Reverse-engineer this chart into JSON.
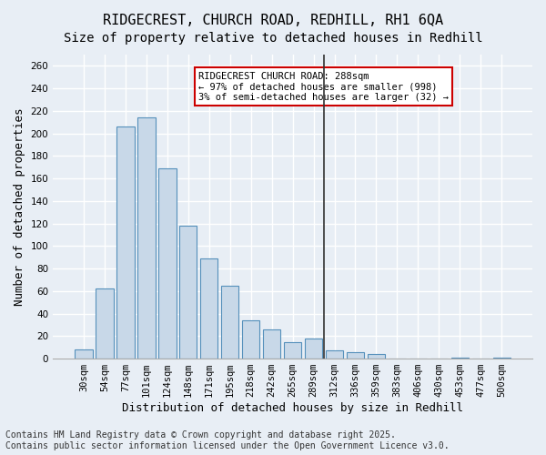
{
  "title1": "RIDGECREST, CHURCH ROAD, REDHILL, RH1 6QA",
  "title2": "Size of property relative to detached houses in Redhill",
  "xlabel": "Distribution of detached houses by size in Redhill",
  "ylabel": "Number of detached properties",
  "bar_labels": [
    "30sqm",
    "54sqm",
    "77sqm",
    "101sqm",
    "124sqm",
    "148sqm",
    "171sqm",
    "195sqm",
    "218sqm",
    "242sqm",
    "265sqm",
    "289sqm",
    "312sqm",
    "336sqm",
    "359sqm",
    "383sqm",
    "406sqm",
    "430sqm",
    "453sqm",
    "477sqm",
    "500sqm"
  ],
  "bar_values": [
    8,
    62,
    206,
    214,
    169,
    118,
    89,
    65,
    34,
    26,
    15,
    18,
    7,
    6,
    4,
    0,
    0,
    0,
    1,
    0,
    1
  ],
  "bar_color": "#c8d8e8",
  "bar_edge_color": "#5590bb",
  "vline_x": 11.5,
  "vline_color": "#333333",
  "annotation_text": "RIDGECREST CHURCH ROAD: 288sqm\n← 97% of detached houses are smaller (998)\n3% of semi-detached houses are larger (32) →",
  "annotation_box_color": "#ffffff",
  "annotation_box_edge_color": "#cc0000",
  "ylim": [
    0,
    270
  ],
  "yticks": [
    0,
    20,
    40,
    60,
    80,
    100,
    120,
    140,
    160,
    180,
    200,
    220,
    240,
    260
  ],
  "background_color": "#e8eef5",
  "grid_color": "#ffffff",
  "footer_text": "Contains HM Land Registry data © Crown copyright and database right 2025.\nContains public sector information licensed under the Open Government Licence v3.0.",
  "title_fontsize": 11,
  "subtitle_fontsize": 10,
  "axis_label_fontsize": 9,
  "tick_fontsize": 7.5,
  "footer_fontsize": 7
}
